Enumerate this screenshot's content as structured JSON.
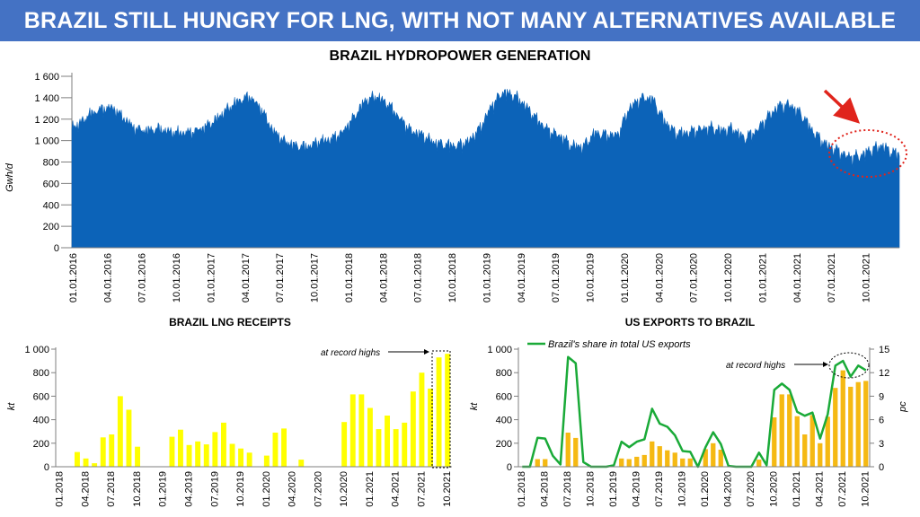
{
  "banner": {
    "title": "BRAZIL STILL HUNGRY FOR LNG, WITH NOT MANY ALTERNATIVES AVAILABLE"
  },
  "colors": {
    "banner": "#4472c4",
    "hydro": "#0c63b8",
    "lng": "#ffff00",
    "usbars": "#f5b913",
    "share": "#1aaa38",
    "annotation_red": "#e0241c"
  },
  "chart_data": [
    {
      "type": "area",
      "title": "BRAZIL HYDROPOWER GENERATION",
      "xlabel": "",
      "ylabel": "Gwh/d",
      "ylim": [
        0,
        1600
      ],
      "yticks": [
        "0",
        "200",
        "400",
        "600",
        "800",
        "1 000",
        "1 200",
        "1 400",
        "1 600"
      ],
      "xticks": [
        "01.01.2016",
        "04.01.2016",
        "07.01.2016",
        "10.01.2016",
        "01.01.2017",
        "04.01.2017",
        "07.01.2017",
        "10.01.2017",
        "01.01.2018",
        "04.01.2018",
        "07.01.2018",
        "10.01.2018",
        "01.01.2019",
        "04.01.2019",
        "07.01.2019",
        "10.01.2019",
        "01.01.2020",
        "04.01.2020",
        "07.01.2020",
        "10.01.2020",
        "01.01.2021",
        "04.01.2021",
        "07.01.2021",
        "10.01.2021"
      ],
      "months": [
        "2016-01",
        "2016-02",
        "2016-03",
        "2016-04",
        "2016-05",
        "2016-06",
        "2016-07",
        "2016-08",
        "2016-09",
        "2016-10",
        "2016-11",
        "2016-12",
        "2017-01",
        "2017-02",
        "2017-03",
        "2017-04",
        "2017-05",
        "2017-06",
        "2017-07",
        "2017-08",
        "2017-09",
        "2017-10",
        "2017-11",
        "2017-12",
        "2018-01",
        "2018-02",
        "2018-03",
        "2018-04",
        "2018-05",
        "2018-06",
        "2018-07",
        "2018-08",
        "2018-09",
        "2018-10",
        "2018-11",
        "2018-12",
        "2019-01",
        "2019-02",
        "2019-03",
        "2019-04",
        "2019-05",
        "2019-06",
        "2019-07",
        "2019-08",
        "2019-09",
        "2019-10",
        "2019-11",
        "2019-12",
        "2020-01",
        "2020-02",
        "2020-03",
        "2020-04",
        "2020-05",
        "2020-06",
        "2020-07",
        "2020-08",
        "2020-09",
        "2020-10",
        "2020-11",
        "2020-12",
        "2021-01",
        "2021-02",
        "2021-03",
        "2021-04",
        "2021-05",
        "2021-06",
        "2021-07",
        "2021-08",
        "2021-09",
        "2021-10",
        "2021-11",
        "2021-12"
      ],
      "monthly_avg": [
        1150,
        1250,
        1300,
        1320,
        1220,
        1120,
        1100,
        1120,
        1090,
        1080,
        1090,
        1130,
        1200,
        1300,
        1380,
        1420,
        1300,
        1100,
        1000,
        960,
        950,
        1000,
        1020,
        1080,
        1220,
        1380,
        1420,
        1350,
        1220,
        1100,
        1060,
        990,
        970,
        960,
        1000,
        1120,
        1330,
        1460,
        1430,
        1330,
        1200,
        1100,
        1050,
        960,
        950,
        1080,
        1060,
        1060,
        1310,
        1400,
        1400,
        1200,
        1080,
        1080,
        1110,
        1130,
        1100,
        1120,
        1030,
        1090,
        1220,
        1330,
        1340,
        1250,
        1090,
        980,
        920,
        860,
        860,
        920,
        960,
        890
      ],
      "annotations": [
        "red-arrow",
        "red-dotted-ellipse"
      ]
    },
    {
      "type": "bar",
      "title": "BRAZIL LNG RECEIPTS",
      "ylabel": "kt",
      "ylim": [
        0,
        1000
      ],
      "yticks": [
        "0",
        "200",
        "400",
        "600",
        "800",
        "1 000"
      ],
      "xticks": [
        "01.2018",
        "04.2018",
        "07.2018",
        "10.2018",
        "01.2019",
        "04.2019",
        "07.2019",
        "10.2019",
        "01.2020",
        "04.2020",
        "07.2020",
        "10.2020",
        "01.2021",
        "04.2021",
        "07.2021",
        "10.2021"
      ],
      "categories": [
        "01.2018",
        "02.2018",
        "03.2018",
        "04.2018",
        "05.2018",
        "06.2018",
        "07.2018",
        "08.2018",
        "09.2018",
        "10.2018",
        "11.2018",
        "12.2018",
        "01.2019",
        "02.2019",
        "03.2019",
        "04.2019",
        "05.2019",
        "06.2019",
        "07.2019",
        "08.2019",
        "09.2019",
        "10.2019",
        "11.2019",
        "12.2019",
        "01.2020",
        "02.2020",
        "03.2020",
        "04.2020",
        "05.2020",
        "06.2020",
        "07.2020",
        "08.2020",
        "09.2020",
        "10.2020",
        "11.2020",
        "12.2020",
        "01.2021",
        "02.2021",
        "03.2021",
        "04.2021",
        "05.2021",
        "06.2021",
        "07.2021",
        "08.2021",
        "09.2021",
        "10.2021"
      ],
      "values": [
        0,
        0,
        125,
        70,
        30,
        250,
        275,
        600,
        485,
        170,
        0,
        0,
        0,
        255,
        315,
        185,
        215,
        190,
        295,
        375,
        195,
        155,
        120,
        0,
        95,
        290,
        325,
        0,
        60,
        0,
        0,
        0,
        0,
        380,
        615,
        615,
        500,
        320,
        435,
        320,
        375,
        640,
        800,
        665,
        930,
        960
      ],
      "annotation": "at record highs"
    },
    {
      "type": "bar",
      "title": "US EXPORTS TO BRAZIL",
      "ylabel": "kt",
      "y2label": "pc",
      "ylim": [
        0,
        1000
      ],
      "y2lim": [
        0,
        15
      ],
      "yticks": [
        "0",
        "200",
        "400",
        "600",
        "800",
        "1 000"
      ],
      "y2ticks": [
        "0",
        "3",
        "6",
        "9",
        "12",
        "15"
      ],
      "xticks": [
        "01.2018",
        "04.2018",
        "07.2018",
        "10.2018",
        "01.2019",
        "04.2019",
        "07.2019",
        "10.2019",
        "01.2020",
        "04.2020",
        "07.2020",
        "10.2020",
        "01.2021",
        "04.2021",
        "07.2021",
        "10.2021"
      ],
      "categories": [
        "01.2018",
        "02.2018",
        "03.2018",
        "04.2018",
        "05.2018",
        "06.2018",
        "07.2018",
        "08.2018",
        "09.2018",
        "10.2018",
        "11.2018",
        "12.2018",
        "01.2019",
        "02.2019",
        "03.2019",
        "04.2019",
        "05.2019",
        "06.2019",
        "07.2019",
        "08.2019",
        "09.2019",
        "10.2019",
        "11.2019",
        "12.2019",
        "01.2020",
        "02.2020",
        "03.2020",
        "04.2020",
        "05.2020",
        "06.2020",
        "07.2020",
        "08.2020",
        "09.2020",
        "10.2020",
        "11.2020",
        "12.2020",
        "01.2021",
        "02.2021",
        "03.2021",
        "04.2021",
        "05.2021",
        "06.2021",
        "07.2021",
        "08.2021",
        "09.2021",
        "10.2021"
      ],
      "series": [
        {
          "name": "US exports to Brazil",
          "type": "bar",
          "values": [
            0,
            0,
            65,
            65,
            0,
            0,
            290,
            245,
            0,
            0,
            0,
            0,
            0,
            70,
            65,
            85,
            100,
            215,
            175,
            140,
            120,
            70,
            70,
            0,
            150,
            200,
            145,
            0,
            0,
            0,
            0,
            60,
            0,
            420,
            615,
            615,
            430,
            275,
            440,
            200,
            425,
            670,
            820,
            680,
            720,
            730
          ]
        },
        {
          "name": "Brazil's share in total US exports",
          "type": "line",
          "axis": "right",
          "values": [
            0,
            0,
            3.7,
            3.6,
            1.4,
            0.3,
            14.0,
            13.2,
            0.6,
            0,
            0,
            0,
            0.2,
            3.2,
            2.5,
            3.2,
            3.5,
            7.4,
            5.5,
            5.1,
            4.0,
            2.0,
            1.9,
            0,
            2.5,
            4.4,
            2.9,
            0.1,
            0,
            0,
            0,
            1.8,
            0.2,
            9.8,
            10.6,
            9.8,
            7.0,
            6.5,
            6.9,
            3.6,
            6.7,
            12.9,
            13.5,
            11.5,
            12.9,
            12.3
          ]
        }
      ],
      "legend": "Brazil's share in total US exports",
      "annotation": "at record highs"
    }
  ]
}
